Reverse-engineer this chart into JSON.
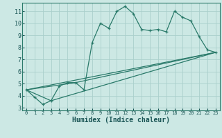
{
  "xlabel": "Humidex (Indice chaleur)",
  "bg_color": "#cce8e4",
  "grid_color": "#aacfcc",
  "line_color": "#2a7a6a",
  "xlim": [
    -0.5,
    23.5
  ],
  "ylim": [
    2.8,
    11.7
  ],
  "yticks": [
    3,
    4,
    5,
    6,
    7,
    8,
    9,
    10,
    11
  ],
  "xticks": [
    0,
    1,
    2,
    3,
    4,
    5,
    6,
    7,
    8,
    9,
    10,
    11,
    12,
    13,
    14,
    15,
    16,
    17,
    18,
    19,
    20,
    21,
    22,
    23
  ],
  "series1_x": [
    0,
    1,
    2,
    3,
    4,
    5,
    6,
    7,
    8,
    9,
    10,
    11,
    12,
    13,
    14,
    15,
    16,
    17,
    18,
    19,
    20,
    21,
    22,
    23
  ],
  "series1_y": [
    4.5,
    3.9,
    3.3,
    3.6,
    4.8,
    5.1,
    5.1,
    4.5,
    8.4,
    10.0,
    9.6,
    11.0,
    11.4,
    10.8,
    9.5,
    9.4,
    9.5,
    9.3,
    11.0,
    10.5,
    10.2,
    8.9,
    7.8,
    7.6
  ],
  "series2_x": [
    0,
    6,
    23
  ],
  "series2_y": [
    4.5,
    5.1,
    7.6
  ],
  "series3_x": [
    0,
    3,
    23
  ],
  "series3_y": [
    4.5,
    3.6,
    7.6
  ],
  "series4_x": [
    0,
    23
  ],
  "series4_y": [
    4.5,
    7.6
  ]
}
